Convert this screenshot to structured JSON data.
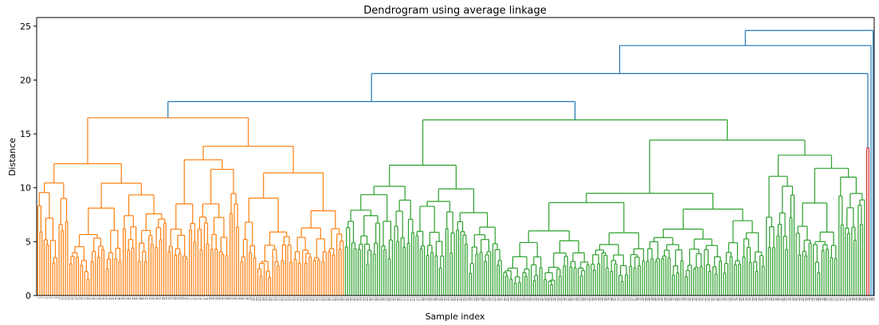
{
  "chart_data": {
    "type": "dendrogram",
    "title": "Dendrogram using average linkage",
    "xlabel": "Sample index",
    "ylabel": "Distance",
    "ylim": [
      0,
      25.8
    ],
    "y_ticks": [
      0,
      5,
      10,
      15,
      20,
      25
    ],
    "grid": false,
    "colors": {
      "above_threshold": "#1f77b4",
      "orange_cluster": "#ff7f0e",
      "green_cluster": "#2ca02c",
      "red_cluster": "#d62728"
    },
    "clusters": [
      {
        "color": "orange_cluster",
        "leaf_count": 144,
        "root_height": 16.5
      },
      {
        "color": "green_cluster",
        "leaf_count": 244,
        "root_height": 16.3
      },
      {
        "color": "red_cluster",
        "leaf_count": 2,
        "root_height": 13.7
      }
    ],
    "top_merges": [
      {
        "between": "orange+green",
        "height": 18.0
      },
      {
        "between": "above+red",
        "height": 20.6
      },
      {
        "between": "above+single",
        "height": 23.2
      },
      {
        "between": "root",
        "height": 24.6
      }
    ],
    "tail_leaves": 2
  }
}
